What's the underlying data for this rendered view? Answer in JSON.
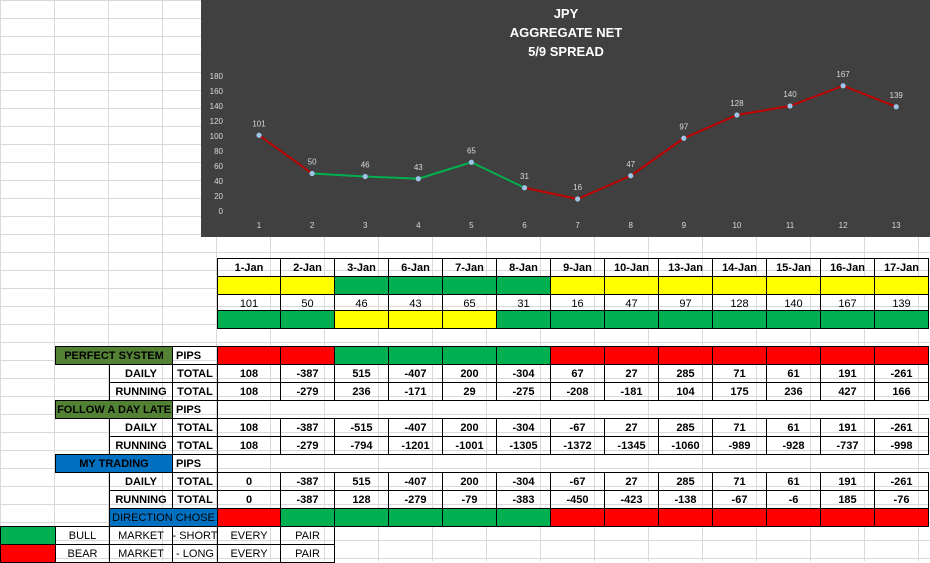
{
  "chart_data": {
    "type": "line",
    "title": [
      "JPY",
      "AGGREGATE NET",
      "5/9 SPREAD"
    ],
    "x": [
      1,
      2,
      3,
      4,
      5,
      6,
      7,
      8,
      9,
      10,
      11,
      12,
      13
    ],
    "values": [
      101,
      50,
      46,
      43,
      65,
      31,
      16,
      47,
      97,
      128,
      140,
      167,
      139
    ],
    "ylim": [
      0,
      180
    ],
    "yticks": [
      0,
      20,
      40,
      60,
      80,
      100,
      120,
      140,
      160,
      180
    ],
    "segment_colors": [
      "#c00000",
      "#00b050",
      "#00b050",
      "#00b050",
      "#00b050",
      "#c00000",
      "#c00000",
      "#c00000",
      "#c00000",
      "#c00000",
      "#c00000",
      "#c00000"
    ],
    "grid": false,
    "background": "#404040"
  },
  "table": {
    "dates": [
      "1-Jan",
      "2-Jan",
      "3-Jan",
      "6-Jan",
      "7-Jan",
      "8-Jan",
      "9-Jan",
      "10-Jan",
      "13-Jan",
      "14-Jan",
      "15-Jan",
      "16-Jan",
      "17-Jan"
    ],
    "top_colors": [
      "yellow",
      "yellow",
      "green",
      "green",
      "green",
      "green",
      "yellow",
      "yellow",
      "yellow",
      "yellow",
      "yellow",
      "yellow",
      "yellow"
    ],
    "values": [
      "101",
      "50",
      "46",
      "43",
      "65",
      "31",
      "16",
      "47",
      "97",
      "128",
      "140",
      "167",
      "139"
    ],
    "bottom_colors": [
      "green",
      "green",
      "yellow",
      "yellow",
      "yellow",
      "green",
      "green",
      "green",
      "green",
      "green",
      "green",
      "green",
      "green"
    ]
  },
  "sections": [
    {
      "label": "PERFECT  SYSTEM",
      "label_color": "olive",
      "pips": "PIPS",
      "pip_colors": [
        "red",
        "red",
        "green",
        "green",
        "green",
        "green",
        "red",
        "red",
        "red",
        "red",
        "red",
        "red",
        "red"
      ],
      "daily": {
        "label": "DAILY",
        "total": "TOTAL",
        "first": "108",
        "values": [
          "-387",
          "515",
          "-407",
          "200",
          "-304",
          "67",
          "27",
          "285",
          "71",
          "61",
          "191",
          "-261"
        ]
      },
      "running": {
        "label": "RUNNING",
        "total": "TOTAL",
        "first": "108",
        "values": [
          "-279",
          "236",
          "-171",
          "29",
          "-275",
          "-208",
          "-181",
          "104",
          "175",
          "236",
          "427",
          "166"
        ]
      }
    },
    {
      "label": "FOLLOW A DAY LATE",
      "label_color": "olive",
      "pips": "PIPS",
      "pip_colors": [],
      "daily": {
        "label": "DAILY",
        "total": "TOTAL",
        "first": "108",
        "values": [
          "-387",
          "-515",
          "-407",
          "200",
          "-304",
          "-67",
          "27",
          "285",
          "71",
          "61",
          "191",
          "-261"
        ]
      },
      "running": {
        "label": "RUNNING",
        "total": "TOTAL",
        "first": "108",
        "values": [
          "-279",
          "-794",
          "-1201",
          "-1001",
          "-1305",
          "-1372",
          "-1345",
          "-1060",
          "-989",
          "-928",
          "-737",
          "-998"
        ]
      }
    },
    {
      "label": "MY TRADING",
      "label_color": "blue",
      "pips": "PIPS",
      "pip_colors": [],
      "daily": {
        "label": "DAILY",
        "total": "TOTAL",
        "first": "0",
        "values": [
          "-387",
          "515",
          "-407",
          "200",
          "-304",
          "-67",
          "27",
          "285",
          "71",
          "61",
          "191",
          "-261"
        ]
      },
      "running": {
        "label": "RUNNING",
        "total": "TOTAL",
        "first": "0",
        "values": [
          "-387",
          "128",
          "-279",
          "-79",
          "-383",
          "-450",
          "-423",
          "-138",
          "-67",
          "-6",
          "185",
          "-76"
        ]
      }
    }
  ],
  "direction": {
    "label": "DIRECTION CHOSE",
    "colors": [
      "",
      "red",
      "green",
      "green",
      "green",
      "green",
      "green",
      "red",
      "red",
      "red",
      "red",
      "red",
      "red",
      "red"
    ]
  },
  "legend": [
    {
      "color": "green",
      "words": [
        "BULL",
        "MARKET",
        "- SHORT",
        "EVERY",
        "PAIR"
      ]
    },
    {
      "color": "red",
      "words": [
        "BEAR",
        "MARKET",
        "- LONG",
        "EVERY",
        "PAIR"
      ]
    }
  ]
}
